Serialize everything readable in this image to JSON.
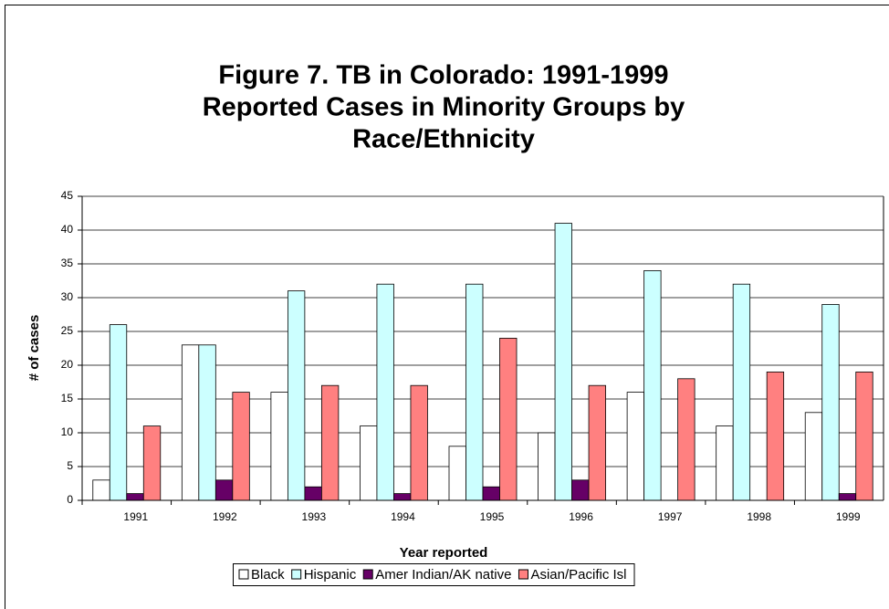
{
  "chart_data": {
    "type": "bar",
    "title": [
      "Figure 7.  TB in Colorado:  1991-1999",
      "Reported Cases in Minority Groups by",
      "Race/Ethnicity"
    ],
    "x_label": "Year reported",
    "y_label": "# of cases",
    "categories": [
      "1991",
      "1992",
      "1993",
      "1994",
      "1995",
      "1996",
      "1997",
      "1998",
      "1999"
    ],
    "series": [
      {
        "name": "Black",
        "color": "#ffffff",
        "values": [
          3,
          23,
          16,
          11,
          8,
          10,
          16,
          11,
          13
        ]
      },
      {
        "name": "Hispanic",
        "color": "#ccffff",
        "values": [
          26,
          23,
          31,
          32,
          32,
          41,
          34,
          32,
          29
        ]
      },
      {
        "name": "Amer Indian/AK native",
        "color": "#660066",
        "values": [
          1,
          3,
          2,
          1,
          2,
          3,
          0,
          0,
          1
        ]
      },
      {
        "name": "Asian/Pacific Isl",
        "color": "#ff8080",
        "values": [
          11,
          16,
          17,
          17,
          24,
          17,
          18,
          19,
          19
        ]
      }
    ],
    "ylim": [
      0,
      45
    ],
    "yticks": [
      0,
      5,
      10,
      15,
      20,
      25,
      30,
      35,
      40,
      45
    ],
    "grid": true,
    "legend": "bottom"
  }
}
